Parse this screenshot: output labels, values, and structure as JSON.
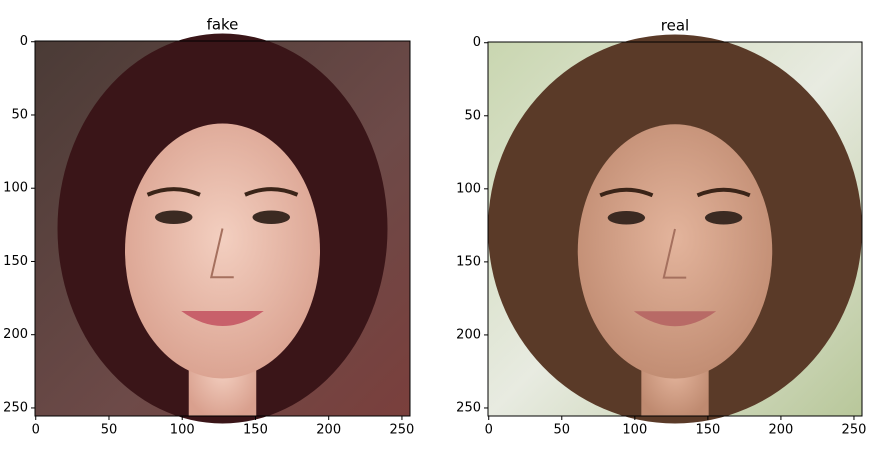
{
  "chart_data": [
    {
      "type": "image",
      "title": "fake",
      "xlim": [
        -0.5,
        255.5
      ],
      "ylim": [
        255.5,
        -0.5
      ],
      "xticks": [
        0,
        50,
        100,
        150,
        200,
        250
      ],
      "yticks": [
        0,
        50,
        100,
        150,
        200,
        250
      ]
    },
    {
      "type": "image",
      "title": "real",
      "xlim": [
        -0.5,
        255.5
      ],
      "ylim": [
        255.5,
        -0.5
      ],
      "xticks": [
        0,
        50,
        100,
        150,
        200,
        250
      ],
      "yticks": [
        0,
        50,
        100,
        150,
        200,
        250
      ]
    }
  ]
}
